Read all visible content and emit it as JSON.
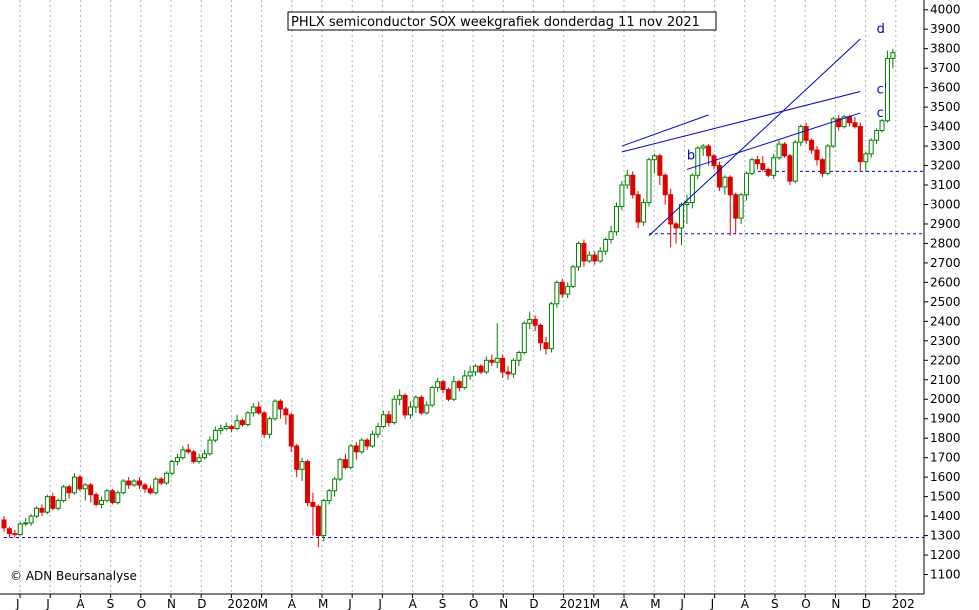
{
  "chart_data": {
    "type": "candlestick",
    "title": "PHLX semiconductor SOX weekgrafiek donderdag 11 nov 2021",
    "copyright": "© ADN Beursanalyse",
    "ylim": [
      1000,
      4050
    ],
    "y_ticks": [
      1100,
      1200,
      1300,
      1400,
      1500,
      1600,
      1700,
      1800,
      1900,
      2000,
      2100,
      2200,
      2300,
      2400,
      2500,
      2600,
      2700,
      2800,
      2900,
      3000,
      3100,
      3200,
      3300,
      3400,
      3500,
      3600,
      3700,
      3800,
      3900,
      4000
    ],
    "x_tick_labels": [
      "J",
      "J",
      "A",
      "S",
      "O",
      "N",
      "D",
      "2020",
      "M",
      "A",
      "M",
      "J",
      "J",
      "A",
      "S",
      "O",
      "N",
      "D",
      "2021",
      "M",
      "A",
      "M",
      "J",
      "J",
      "A",
      "S",
      "O",
      "N",
      "D",
      "202"
    ],
    "grid": "vertical dotted",
    "up_color": "#008000",
    "down_color": "#e00000",
    "line_color": "#0000cc",
    "series": [
      [
        1380,
        1340,
        1400,
        1320
      ],
      [
        1335,
        1310,
        1345,
        1290
      ],
      [
        1310,
        1305,
        1330,
        1290
      ],
      [
        1305,
        1360,
        1370,
        1300
      ],
      [
        1360,
        1365,
        1390,
        1350
      ],
      [
        1365,
        1400,
        1410,
        1350
      ],
      [
        1400,
        1440,
        1450,
        1390
      ],
      [
        1440,
        1420,
        1460,
        1400
      ],
      [
        1420,
        1500,
        1510,
        1410
      ],
      [
        1500,
        1440,
        1520,
        1430
      ],
      [
        1440,
        1480,
        1490,
        1430
      ],
      [
        1480,
        1550,
        1560,
        1470
      ],
      [
        1550,
        1520,
        1560,
        1490
      ],
      [
        1520,
        1600,
        1620,
        1510
      ],
      [
        1600,
        1540,
        1610,
        1530
      ],
      [
        1540,
        1560,
        1570,
        1480
      ],
      [
        1560,
        1510,
        1570,
        1470
      ],
      [
        1510,
        1460,
        1520,
        1450
      ],
      [
        1460,
        1480,
        1500,
        1440
      ],
      [
        1480,
        1530,
        1540,
        1470
      ],
      [
        1530,
        1470,
        1540,
        1460
      ],
      [
        1470,
        1520,
        1530,
        1460
      ],
      [
        1520,
        1580,
        1590,
        1510
      ],
      [
        1580,
        1560,
        1600,
        1540
      ],
      [
        1560,
        1580,
        1590,
        1550
      ],
      [
        1580,
        1560,
        1600,
        1540
      ],
      [
        1560,
        1540,
        1570,
        1520
      ],
      [
        1540,
        1520,
        1560,
        1510
      ],
      [
        1520,
        1590,
        1600,
        1510
      ],
      [
        1590,
        1570,
        1600,
        1560
      ],
      [
        1570,
        1620,
        1630,
        1560
      ],
      [
        1620,
        1680,
        1690,
        1610
      ],
      [
        1680,
        1700,
        1720,
        1660
      ],
      [
        1700,
        1740,
        1760,
        1690
      ],
      [
        1740,
        1730,
        1770,
        1720
      ],
      [
        1730,
        1680,
        1740,
        1670
      ],
      [
        1680,
        1700,
        1720,
        1670
      ],
      [
        1700,
        1720,
        1740,
        1690
      ],
      [
        1720,
        1790,
        1810,
        1710
      ],
      [
        1790,
        1840,
        1860,
        1780
      ],
      [
        1840,
        1850,
        1870,
        1820
      ],
      [
        1850,
        1860,
        1880,
        1840
      ],
      [
        1860,
        1850,
        1870,
        1830
      ],
      [
        1850,
        1890,
        1920,
        1840
      ],
      [
        1890,
        1870,
        1900,
        1860
      ],
      [
        1870,
        1930,
        1940,
        1860
      ],
      [
        1930,
        1960,
        1980,
        1910
      ],
      [
        1960,
        1930,
        1990,
        1920
      ],
      [
        1930,
        1820,
        1940,
        1800
      ],
      [
        1820,
        1900,
        1910,
        1800
      ],
      [
        1900,
        1990,
        2000,
        1890
      ],
      [
        1990,
        1950,
        2000,
        1900
      ],
      [
        1950,
        1920,
        1960,
        1870
      ],
      [
        1920,
        1760,
        1930,
        1730
      ],
      [
        1760,
        1640,
        1770,
        1600
      ],
      [
        1640,
        1680,
        1700,
        1580
      ],
      [
        1680,
        1470,
        1690,
        1450
      ],
      [
        1470,
        1450,
        1520,
        1300
      ],
      [
        1450,
        1300,
        1460,
        1240
      ],
      [
        1300,
        1480,
        1490,
        1270
      ],
      [
        1480,
        1530,
        1540,
        1460
      ],
      [
        1530,
        1590,
        1600,
        1500
      ],
      [
        1590,
        1690,
        1700,
        1580
      ],
      [
        1690,
        1650,
        1720,
        1640
      ],
      [
        1650,
        1760,
        1770,
        1640
      ],
      [
        1760,
        1730,
        1780,
        1690
      ],
      [
        1730,
        1790,
        1800,
        1720
      ],
      [
        1790,
        1760,
        1800,
        1740
      ],
      [
        1760,
        1820,
        1840,
        1750
      ],
      [
        1820,
        1860,
        1880,
        1800
      ],
      [
        1860,
        1920,
        1940,
        1850
      ],
      [
        1920,
        1880,
        1940,
        1860
      ],
      [
        1880,
        2000,
        2020,
        1870
      ],
      [
        2000,
        2020,
        2050,
        1970
      ],
      [
        2020,
        1920,
        2030,
        1900
      ],
      [
        1920,
        1960,
        1990,
        1900
      ],
      [
        1960,
        2010,
        2020,
        1930
      ],
      [
        2010,
        1930,
        2020,
        1920
      ],
      [
        1930,
        1970,
        1990,
        1920
      ],
      [
        1970,
        2060,
        2070,
        1960
      ],
      [
        2060,
        2090,
        2110,
        2040
      ],
      [
        2090,
        2050,
        2100,
        2030
      ],
      [
        2050,
        2000,
        2060,
        1990
      ],
      [
        2000,
        2090,
        2120,
        1990
      ],
      [
        2090,
        2060,
        2100,
        2040
      ],
      [
        2060,
        2120,
        2150,
        2050
      ],
      [
        2120,
        2140,
        2170,
        2100
      ],
      [
        2140,
        2170,
        2180,
        2120
      ],
      [
        2170,
        2140,
        2180,
        2130
      ],
      [
        2140,
        2200,
        2220,
        2130
      ],
      [
        2200,
        2190,
        2230,
        2170
      ],
      [
        2190,
        2210,
        2390,
        2160
      ],
      [
        2210,
        2140,
        2230,
        2110
      ],
      [
        2140,
        2130,
        2170,
        2100
      ],
      [
        2130,
        2200,
        2210,
        2110
      ],
      [
        2200,
        2240,
        2250,
        2170
      ],
      [
        2240,
        2390,
        2400,
        2230
      ],
      [
        2390,
        2410,
        2450,
        2360
      ],
      [
        2410,
        2380,
        2430,
        2350
      ],
      [
        2380,
        2290,
        2390,
        2250
      ],
      [
        2290,
        2260,
        2320,
        2230
      ],
      [
        2260,
        2490,
        2500,
        2240
      ],
      [
        2490,
        2600,
        2610,
        2470
      ],
      [
        2600,
        2540,
        2620,
        2520
      ],
      [
        2540,
        2580,
        2600,
        2520
      ],
      [
        2580,
        2680,
        2690,
        2570
      ],
      [
        2680,
        2800,
        2810,
        2660
      ],
      [
        2800,
        2710,
        2820,
        2680
      ],
      [
        2710,
        2740,
        2760,
        2700
      ],
      [
        2740,
        2710,
        2760,
        2690
      ],
      [
        2710,
        2760,
        2780,
        2700
      ],
      [
        2760,
        2820,
        2830,
        2740
      ],
      [
        2820,
        2860,
        2890,
        2800
      ],
      [
        2860,
        2990,
        3010,
        2840
      ],
      [
        2990,
        3100,
        3120,
        2970
      ],
      [
        3100,
        3150,
        3180,
        3080
      ],
      [
        3150,
        3050,
        3170,
        3030
      ],
      [
        3050,
        2910,
        3070,
        2880
      ],
      [
        2910,
        3010,
        3030,
        2890
      ],
      [
        3010,
        3230,
        3240,
        2990
      ],
      [
        3230,
        3250,
        3260,
        3160
      ],
      [
        3250,
        3150,
        3260,
        3100
      ],
      [
        3150,
        3050,
        3160,
        3000
      ],
      [
        3050,
        2900,
        3080,
        2780
      ],
      [
        2900,
        2880,
        2910,
        2800
      ],
      [
        2880,
        3000,
        3010,
        2790
      ],
      [
        3000,
        3010,
        3050,
        2900
      ],
      [
        3010,
        3150,
        3160,
        2980
      ],
      [
        3150,
        3290,
        3300,
        3130
      ],
      [
        3290,
        3300,
        3310,
        3250
      ],
      [
        3300,
        3250,
        3310,
        3200
      ],
      [
        3250,
        3200,
        3260,
        3180
      ],
      [
        3200,
        3090,
        3220,
        3070
      ],
      [
        3090,
        3140,
        3150,
        3050
      ],
      [
        3140,
        3050,
        3150,
        2840
      ],
      [
        3050,
        2930,
        3060,
        2850
      ],
      [
        2930,
        3050,
        3060,
        2900
      ],
      [
        3050,
        3160,
        3170,
        3020
      ],
      [
        3160,
        3230,
        3240,
        3150
      ],
      [
        3230,
        3210,
        3250,
        3180
      ],
      [
        3210,
        3180,
        3250,
        3170
      ],
      [
        3180,
        3150,
        3190,
        3140
      ],
      [
        3150,
        3240,
        3260,
        3130
      ],
      [
        3240,
        3310,
        3330,
        3230
      ],
      [
        3310,
        3250,
        3320,
        3240
      ],
      [
        3250,
        3120,
        3260,
        3100
      ],
      [
        3120,
        3320,
        3330,
        3110
      ],
      [
        3320,
        3400,
        3410,
        3300
      ],
      [
        3400,
        3330,
        3420,
        3310
      ],
      [
        3330,
        3280,
        3340,
        3260
      ],
      [
        3280,
        3230,
        3300,
        3200
      ],
      [
        3230,
        3160,
        3240,
        3140
      ],
      [
        3160,
        3300,
        3310,
        3150
      ],
      [
        3300,
        3440,
        3450,
        3290
      ],
      [
        3440,
        3400,
        3460,
        3380
      ],
      [
        3400,
        3450,
        3460,
        3390
      ],
      [
        3450,
        3420,
        3460,
        3400
      ],
      [
        3420,
        3400,
        3450,
        3390
      ],
      [
        3400,
        3220,
        3420,
        3170
      ],
      [
        3220,
        3260,
        3270,
        3170
      ],
      [
        3260,
        3330,
        3340,
        3240
      ],
      [
        3330,
        3380,
        3390,
        3310
      ],
      [
        3380,
        3430,
        3440,
        3370
      ],
      [
        3430,
        3750,
        3790,
        3420
      ],
      [
        3750,
        3780,
        3800,
        3700
      ]
    ],
    "lines": [
      {
        "label": "d",
        "from": [
          119,
          2840
        ],
        "to": [
          158,
          3850
        ]
      },
      {
        "label": "c'",
        "from": [
          114,
          3270
        ],
        "to": [
          158,
          3580
        ]
      },
      {
        "label": "c",
        "from": [
          126,
          3180
        ],
        "to": [
          158,
          3470
        ]
      },
      {
        "label": "",
        "from": [
          114,
          3300
        ],
        "to": [
          130,
          3460
        ]
      }
    ],
    "hlines": [
      {
        "y": 1290,
        "from": 0
      },
      {
        "y": 2850,
        "from": 119
      },
      {
        "y": 3170,
        "from": 138
      }
    ],
    "annotations": [
      {
        "text": "d",
        "x": 161,
        "y": 3880
      },
      {
        "text": "c'",
        "x": 161,
        "y": 3570
      },
      {
        "text": "c",
        "x": 161,
        "y": 3450
      },
      {
        "text": "b",
        "x": 126,
        "y": 3230
      }
    ]
  }
}
